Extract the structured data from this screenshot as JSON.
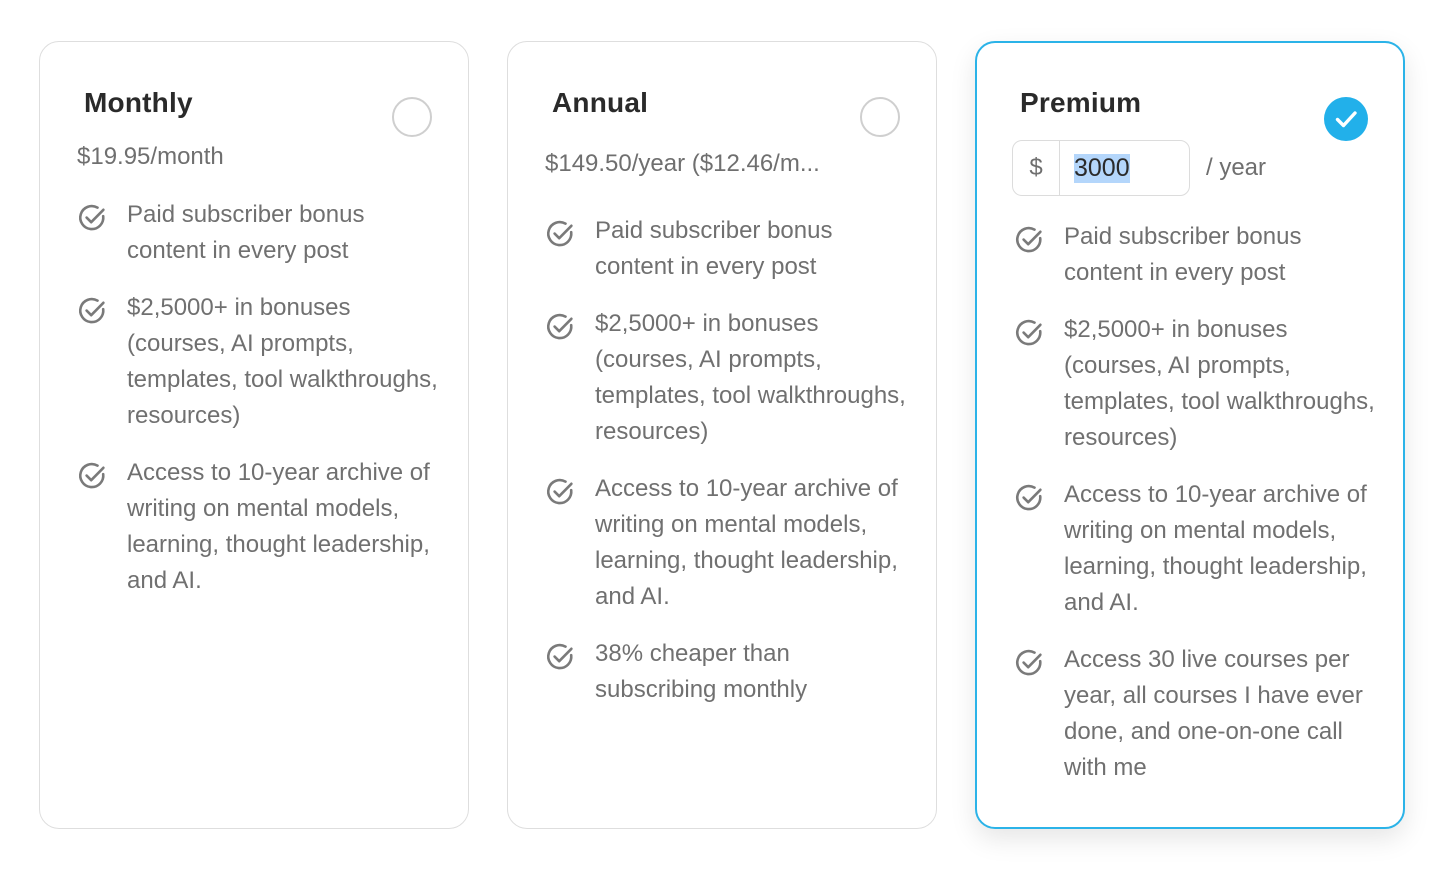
{
  "plans": [
    {
      "id": "monthly",
      "name": "Monthly",
      "price": "$19.95/month",
      "selected": false,
      "features": [
        "Paid subscriber bonus content in every post",
        "$2,5000+ in bonuses (courses, AI prompts, templates, tool walkthroughs, resources)",
        "Access to 10-year archive of writing on mental models, learning, thought leadership, and AI."
      ]
    },
    {
      "id": "annual",
      "name": "Annual",
      "price": "$149.50/year ($12.46/m...",
      "selected": false,
      "features": [
        "Paid subscriber bonus content in every post",
        "$2,5000+ in bonuses (courses, AI prompts, templates, tool walkthroughs, resources)",
        "Access to 10-year archive of writing on mental models, learning, thought leadership, and AI.",
        "38% cheaper than subscribing monthly"
      ]
    },
    {
      "id": "premium",
      "name": "Premium",
      "currency_symbol": "$",
      "amount_value": "3000",
      "period": "/ year",
      "selected": true,
      "features": [
        "Paid subscriber bonus content in every post",
        "$2,5000+ in bonuses (courses, AI prompts, templates, tool walkthroughs, resources)",
        "Access to 10-year archive of writing on mental models, learning, thought leadership, and AI.",
        "Access 30 live courses per year, all courses I have ever done, and one-on-one call with me"
      ]
    }
  ],
  "colors": {
    "accent": "#22b0ea",
    "selected_border": "#2bb3e8",
    "card_border": "#dedede",
    "muted_text": "#707070",
    "selection_highlight": "#b4d6fb"
  },
  "icons": {
    "feature": "check-circle-icon",
    "selected": "checkmark-icon"
  }
}
